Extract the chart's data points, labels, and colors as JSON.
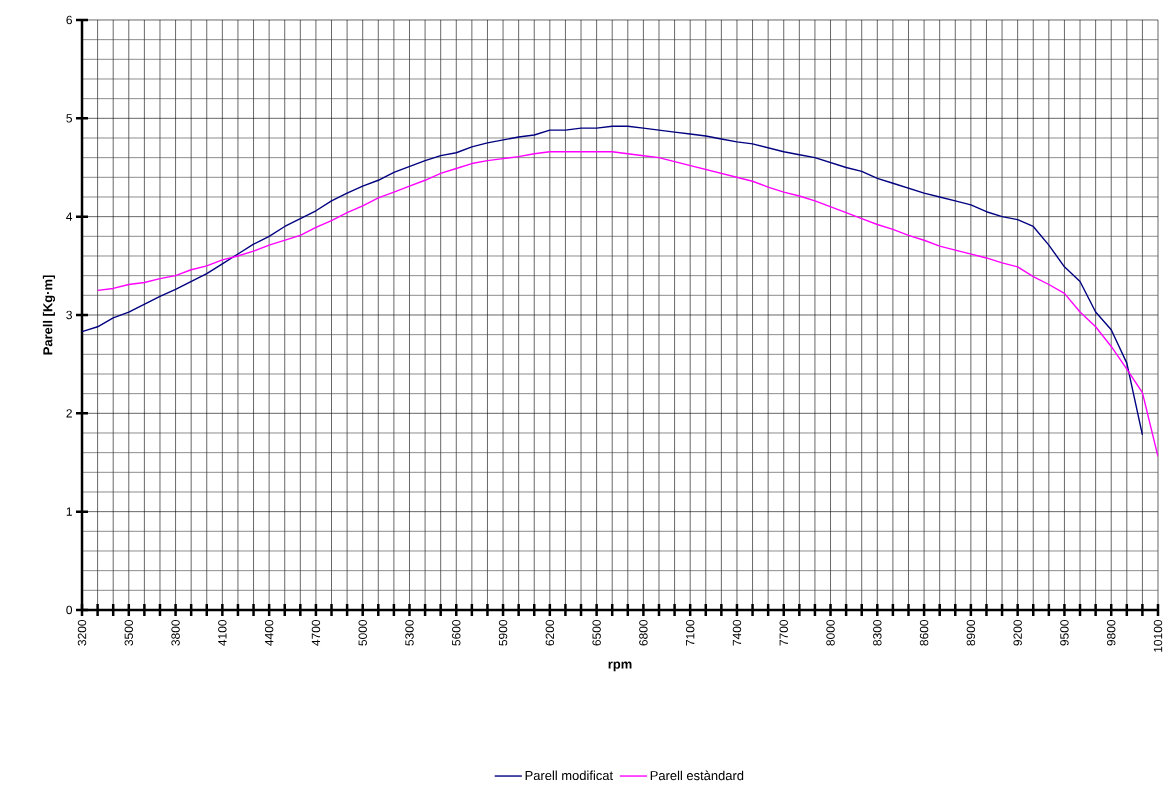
{
  "chart_data": {
    "type": "line",
    "xlabel": "rpm",
    "ylabel": "Parell [Kg·m]",
    "categories": [
      "3200",
      null,
      null,
      "3500",
      null,
      null,
      "3800",
      null,
      null,
      "4100",
      null,
      null,
      "4400",
      null,
      null,
      "4700",
      null,
      null,
      "5000",
      null,
      null,
      "5300",
      null,
      null,
      "5600",
      null,
      null,
      "5900",
      null,
      null,
      "6200",
      null,
      null,
      "6500",
      null,
      null,
      "6800",
      null,
      null,
      "7100",
      null,
      null,
      "7400",
      null,
      null,
      "7700",
      null,
      null,
      "8000",
      null,
      null,
      "8300",
      null,
      null,
      "8600",
      null,
      null,
      "8900",
      null,
      null,
      "9200",
      null,
      null,
      "9500",
      null,
      null,
      "9800",
      null,
      null,
      "10100"
    ],
    "series": [
      {
        "name": "Parell modificat",
        "color": "#000080",
        "values": [
          2.83,
          2.88,
          2.97,
          3.03,
          3.11,
          3.19,
          3.26,
          3.34,
          3.42,
          3.52,
          3.62,
          3.72,
          3.8,
          3.9,
          3.98,
          4.06,
          4.16,
          4.24,
          4.31,
          4.37,
          4.45,
          4.51,
          4.57,
          4.62,
          4.65,
          4.71,
          4.75,
          4.78,
          4.81,
          4.83,
          4.88,
          4.88,
          4.9,
          4.9,
          4.92,
          4.92,
          4.9,
          4.88,
          4.86,
          4.84,
          4.82,
          4.79,
          4.76,
          4.74,
          4.7,
          4.66,
          4.63,
          4.6,
          4.55,
          4.5,
          4.46,
          4.39,
          4.34,
          4.29,
          4.24,
          4.2,
          4.16,
          4.12,
          4.05,
          4.0,
          3.97,
          3.9,
          3.71,
          3.49,
          3.34,
          3.03,
          2.85,
          2.51,
          1.78,
          null
        ]
      },
      {
        "name": "Parell estàndard",
        "color": "#ff00ff",
        "values": [
          null,
          3.25,
          3.27,
          3.31,
          3.33,
          3.37,
          3.4,
          3.46,
          3.5,
          3.56,
          3.6,
          3.65,
          3.71,
          3.76,
          3.81,
          3.89,
          3.96,
          4.04,
          4.11,
          4.19,
          4.25,
          4.31,
          4.37,
          4.44,
          4.49,
          4.54,
          4.57,
          4.59,
          4.61,
          4.64,
          4.66,
          4.66,
          4.66,
          4.66,
          4.66,
          4.64,
          4.62,
          4.6,
          4.56,
          4.52,
          4.48,
          4.44,
          4.4,
          4.36,
          4.3,
          4.25,
          4.21,
          4.16,
          4.1,
          4.04,
          3.98,
          3.92,
          3.87,
          3.81,
          3.76,
          3.7,
          3.66,
          3.62,
          3.58,
          3.53,
          3.49,
          3.39,
          3.31,
          3.22,
          3.03,
          2.88,
          2.68,
          2.45,
          2.21,
          1.56
        ]
      }
    ],
    "ylim": [
      0,
      6
    ],
    "yticks": [
      0,
      1,
      2,
      3,
      4,
      5,
      6
    ],
    "grid": true,
    "legend": "bottom"
  }
}
